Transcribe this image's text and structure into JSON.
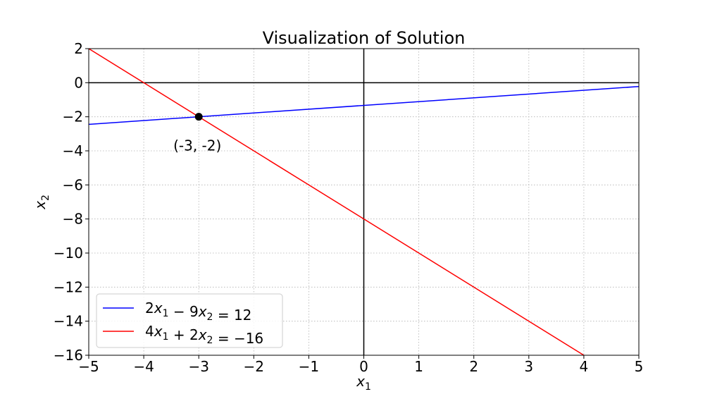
{
  "chart_data": {
    "type": "line",
    "title": "Visualization of Solution",
    "xlabel": {
      "base": "x",
      "sub": "1"
    },
    "ylabel": {
      "base": "x",
      "sub": "2"
    },
    "xlim": [
      -5,
      5
    ],
    "ylim": [
      -16,
      2
    ],
    "xticks": [
      -5,
      -4,
      -3,
      -2,
      -1,
      0,
      1,
      2,
      3,
      4,
      5
    ],
    "yticks": [
      2,
      0,
      -2,
      -4,
      -6,
      -8,
      -10,
      -12,
      -14,
      -16
    ],
    "grid": true,
    "legend_position": "lower-left",
    "series": [
      {
        "name": "2x₁ − 9x₂ = 12",
        "label_parts": [
          "2",
          "x",
          "1",
          " − 9",
          "x",
          "2",
          " = 12"
        ],
        "color": "#0000ff",
        "x": [
          -5,
          5
        ],
        "y": [
          -2.444,
          -0.222
        ]
      },
      {
        "name": "4x₁ + 2x₂ = −16",
        "label_parts": [
          "4",
          "x",
          "1",
          " + 2",
          "x",
          "2",
          " = −16"
        ],
        "color": "#ff0000",
        "x": [
          -5,
          4
        ],
        "y": [
          2,
          -16
        ]
      }
    ],
    "reference_lines": {
      "x0": true,
      "y0": true,
      "color": "#000000"
    },
    "points": [
      {
        "x": -3,
        "y": -2,
        "label": "(-3, -2)",
        "color": "#000000"
      }
    ]
  }
}
